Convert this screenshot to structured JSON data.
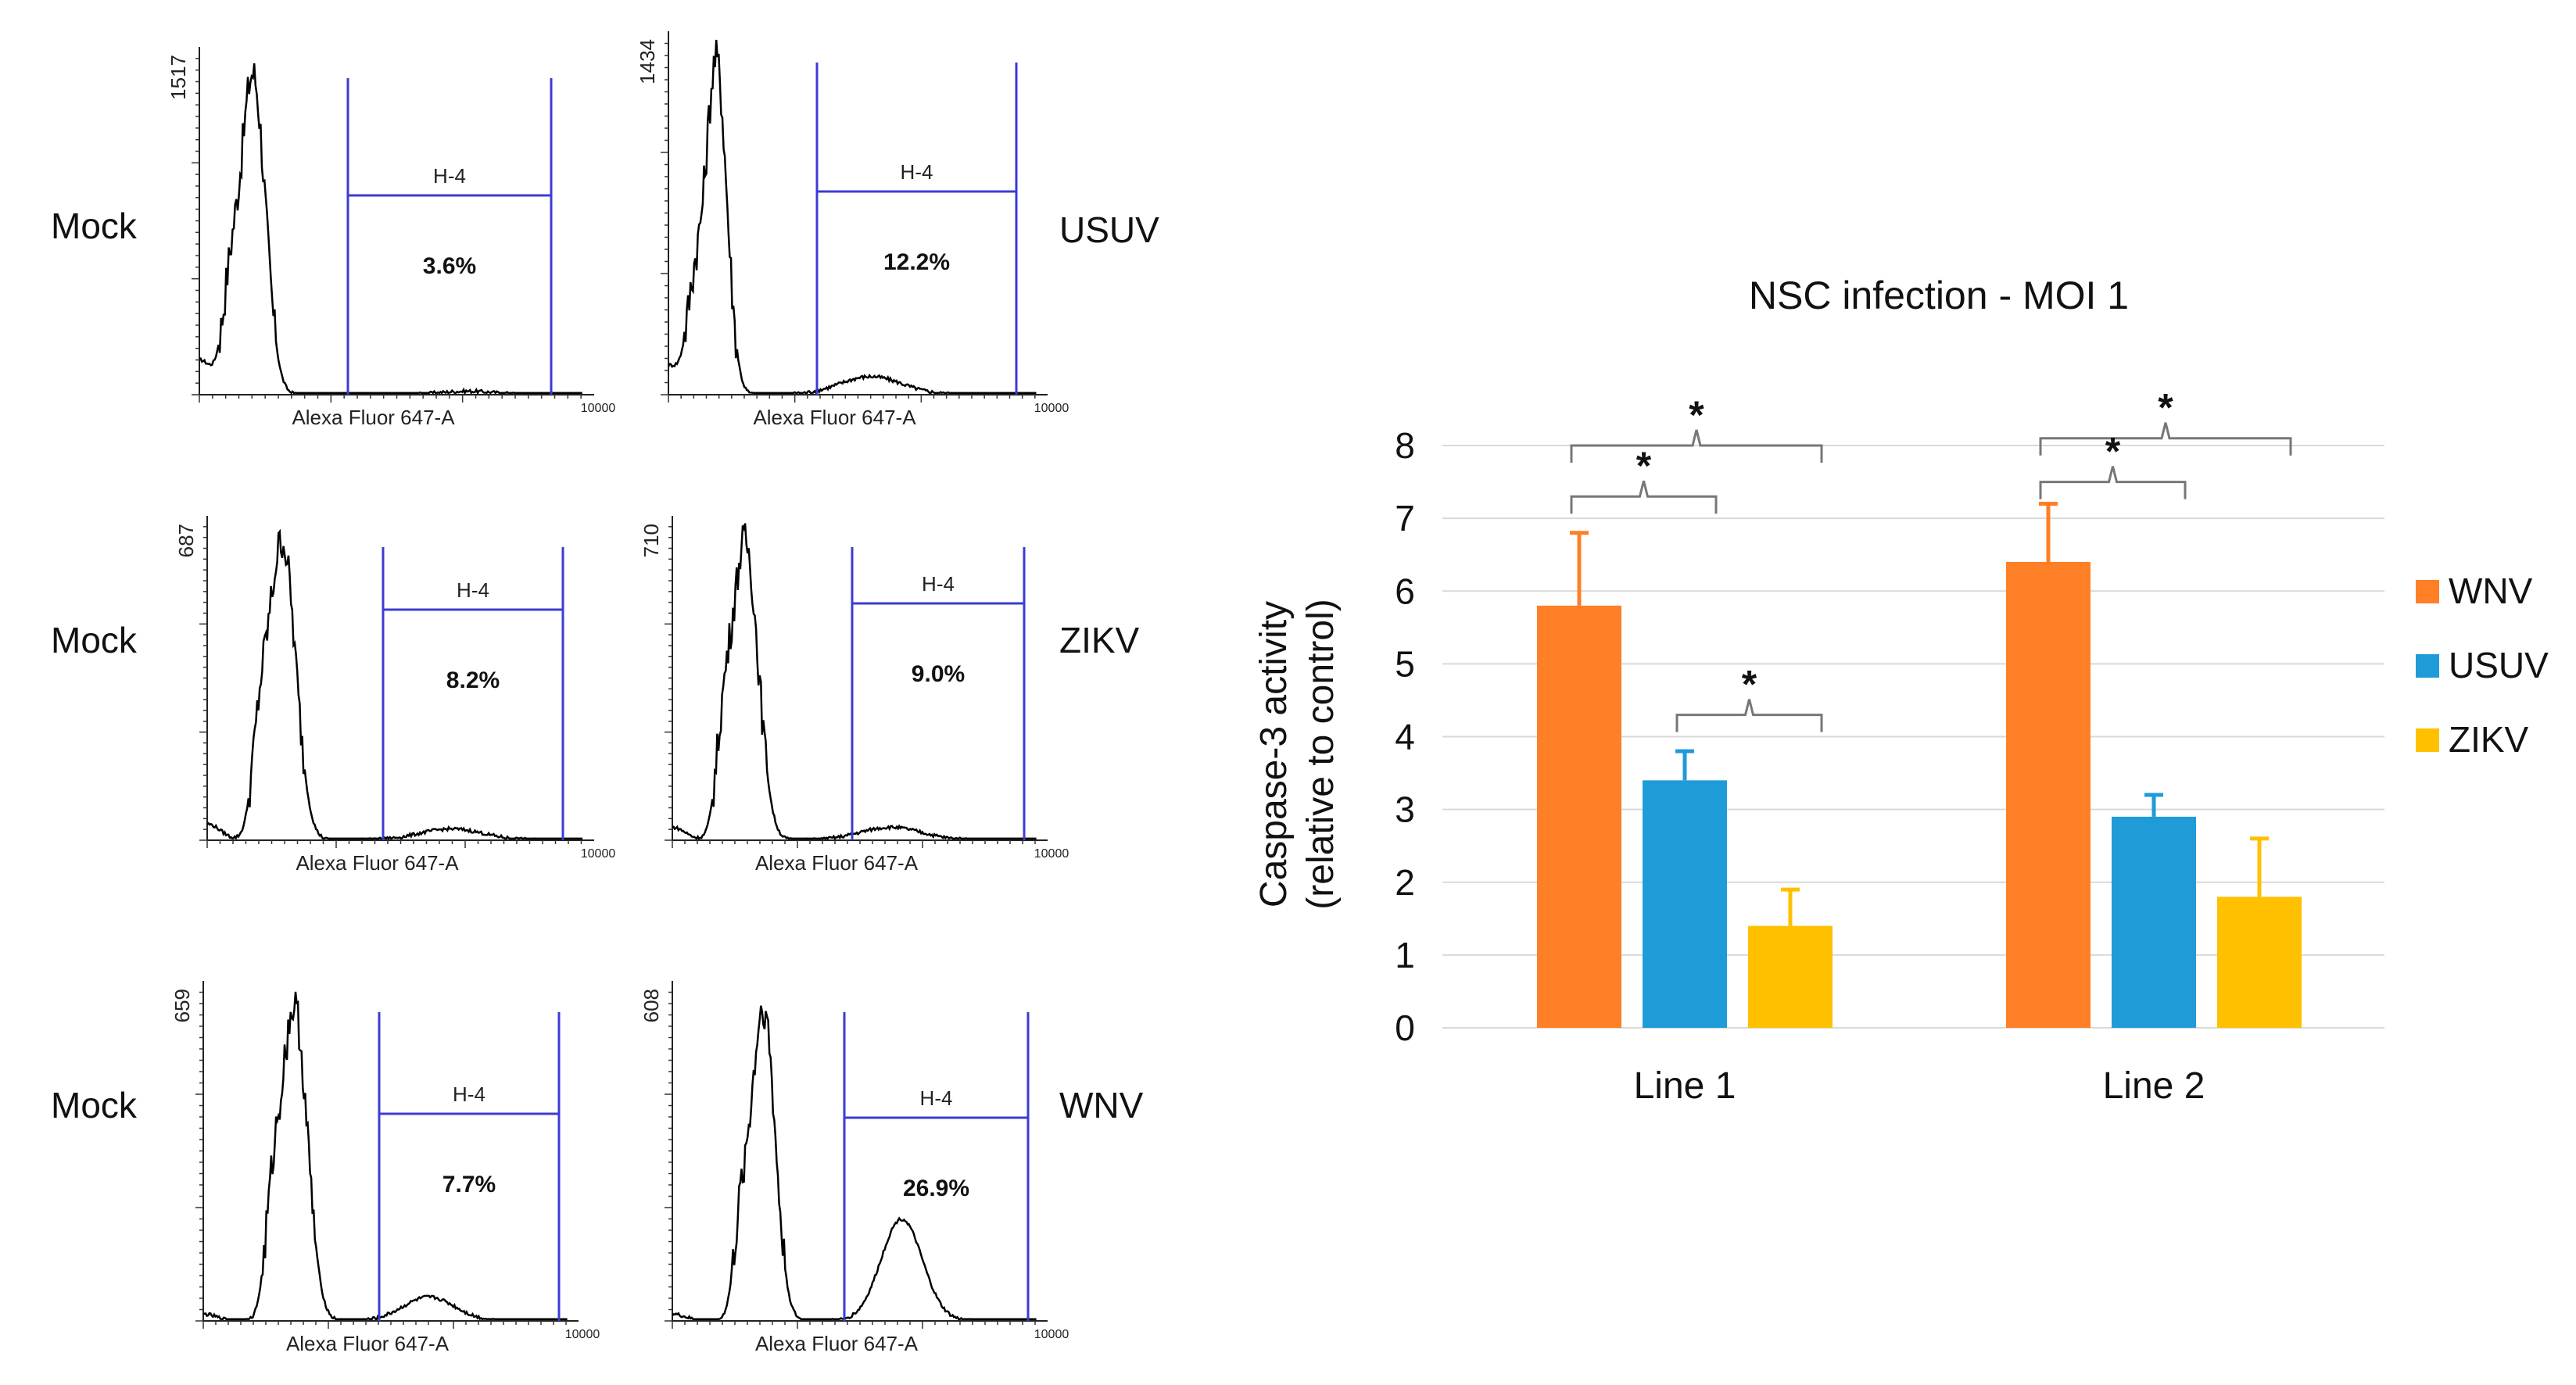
{
  "flow_panels": [
    {
      "row_label": "Mock",
      "y_max": "1517",
      "gate_name": "H-4",
      "gate_percent": "3.6%",
      "x_axis_label": "Alexa Fluor 647-A",
      "x_axis_max": "10000"
    },
    {
      "row_label": "USUV",
      "y_max": "1434",
      "gate_name": "H-4",
      "gate_percent": "12.2%",
      "x_axis_label": "Alexa Fluor 647-A",
      "x_axis_max": "10000"
    },
    {
      "row_label": "Mock",
      "y_max": "687",
      "gate_name": "H-4",
      "gate_percent": "8.2%",
      "x_axis_label": "Alexa Fluor 647-A",
      "x_axis_max": "10000"
    },
    {
      "row_label": "ZIKV",
      "y_max": "710",
      "gate_name": "H-4",
      "gate_percent": "9.0%",
      "x_axis_label": "Alexa Fluor 647-A",
      "x_axis_max": "10000"
    },
    {
      "row_label": "Mock",
      "y_max": "659",
      "gate_name": "H-4",
      "gate_percent": "7.7%",
      "x_axis_label": "Alexa Fluor 647-A",
      "x_axis_max": "10000"
    },
    {
      "row_label": "WNV",
      "y_max": "608",
      "gate_name": "H-4",
      "gate_percent": "26.9%",
      "x_axis_label": "Alexa Fluor 647-A",
      "x_axis_max": "10000"
    }
  ],
  "chart_data": {
    "type": "bar",
    "title": "NSC infection - MOI 1",
    "ylabel_line1": "Caspase-3 activity",
    "ylabel_line2": "(relative to control)",
    "xlabel": "",
    "ylim": [
      0,
      8
    ],
    "yticks": [
      0,
      1,
      2,
      3,
      4,
      5,
      6,
      7,
      8
    ],
    "grid": true,
    "legend_position": "right",
    "categories": [
      "Line 1",
      "Line 2"
    ],
    "series": [
      {
        "name": "WNV",
        "color": "#FF7F27",
        "values": [
          5.8,
          6.4
        ],
        "errors": [
          1.0,
          0.8
        ]
      },
      {
        "name": "USUV",
        "color": "#1F9BD7",
        "values": [
          3.4,
          2.9
        ],
        "errors": [
          0.4,
          0.3
        ]
      },
      {
        "name": "ZIKV",
        "color": "#FFC000",
        "values": [
          1.4,
          1.8
        ],
        "errors": [
          0.5,
          0.8
        ]
      }
    ],
    "significance": [
      {
        "category": 0,
        "from_series": 0,
        "to_series": 2,
        "level": 8,
        "label": "*"
      },
      {
        "category": 0,
        "from_series": 0,
        "to_series": 1,
        "level": 7.3,
        "label": "*"
      },
      {
        "category": 0,
        "from_series": 1,
        "to_series": 2,
        "level": 4.3,
        "label": "*"
      },
      {
        "category": 1,
        "from_series": 0,
        "to_series": 2,
        "level": 8.1,
        "label": "*"
      },
      {
        "category": 1,
        "from_series": 0,
        "to_series": 1,
        "level": 7.5,
        "label": "*"
      }
    ]
  }
}
